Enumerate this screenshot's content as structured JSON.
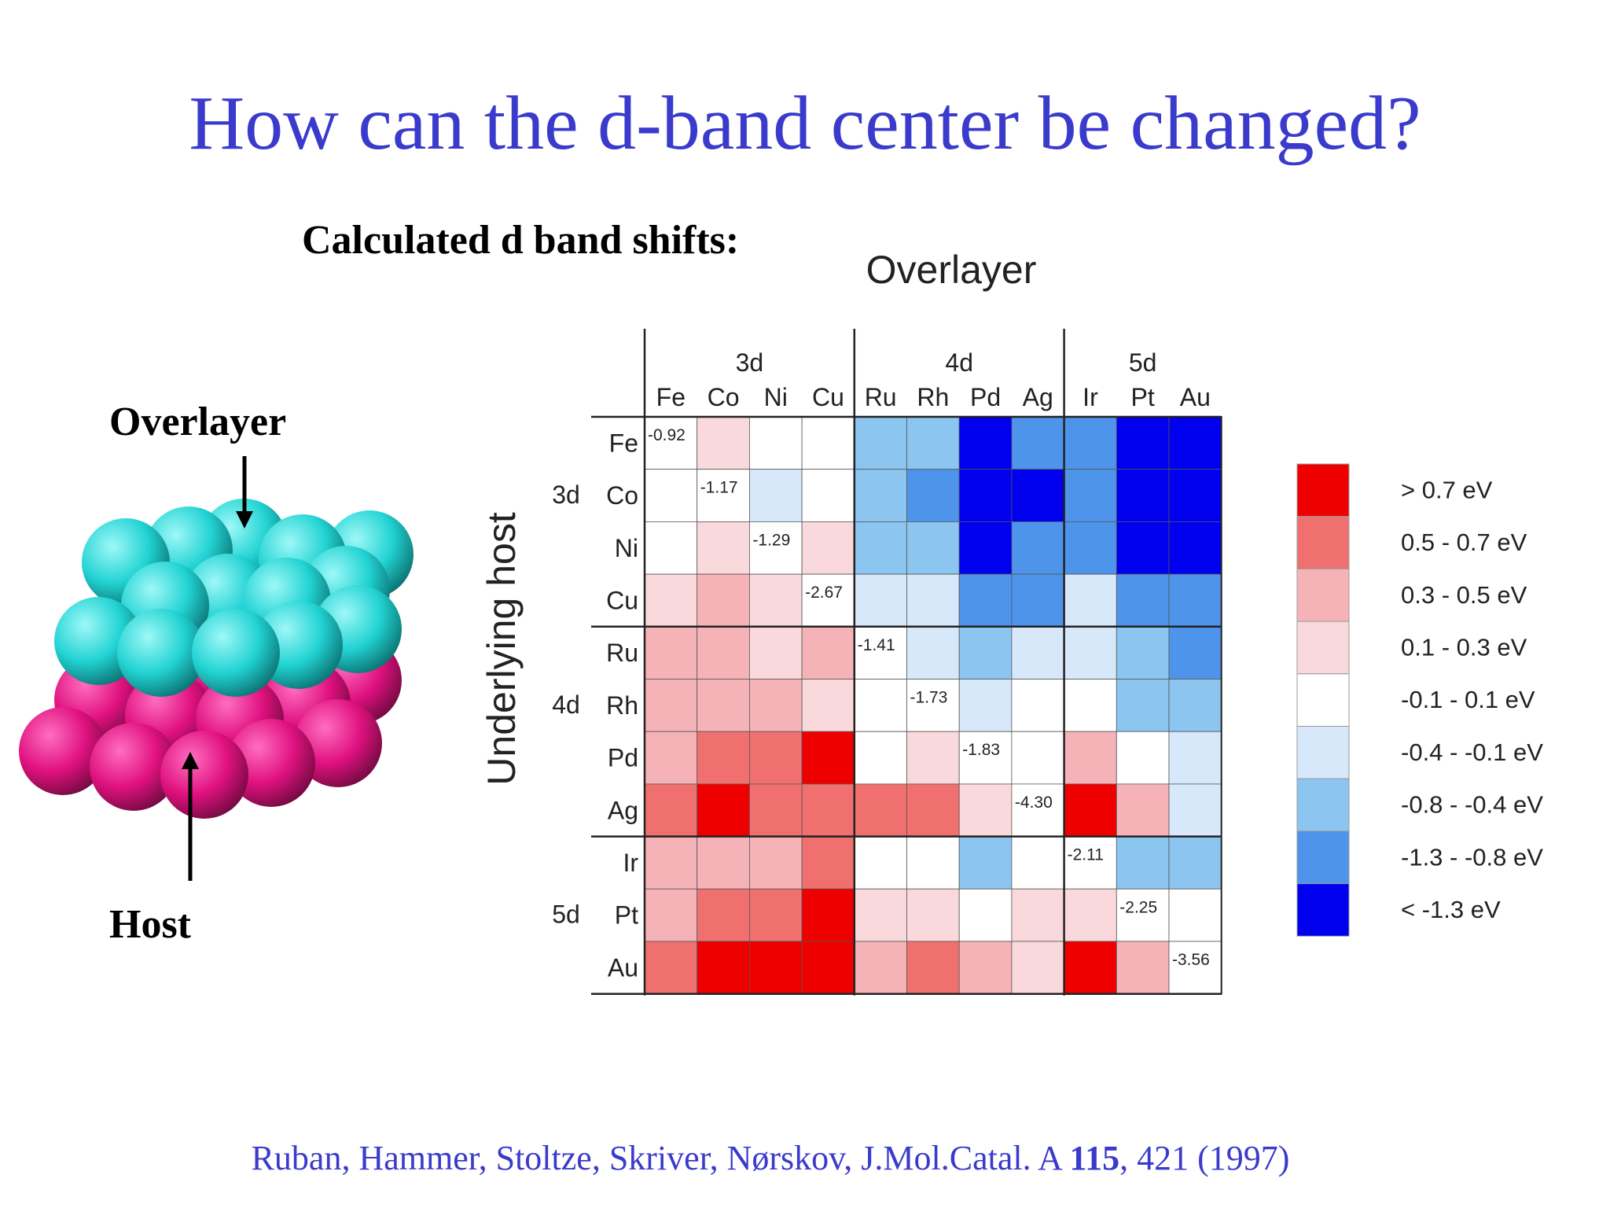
{
  "title": "How can the d-band center be changed?",
  "subtitle": "Calculated d band shifts:",
  "diagram": {
    "overlayer_label": "Overlayer",
    "host_label": "Host",
    "colors": {
      "overlayer": "#22d3d3",
      "host": "#e0117f"
    }
  },
  "citation": {
    "prefix": "Ruban, Hammer, Stoltze, Skriver, Nørskov,  J.Mol.Catal. A ",
    "volume": "115",
    "suffix": ", 421 (1997)"
  },
  "chart_data": {
    "type": "heatmap",
    "title": "Overlayer",
    "xlabel": "Overlayer",
    "ylabel": "Underlying host",
    "groups": [
      "3d",
      "4d",
      "5d"
    ],
    "columns": [
      "Fe",
      "Co",
      "Ni",
      "Cu",
      "Ru",
      "Rh",
      "Pd",
      "Ag",
      "Ir",
      "Pt",
      "Au"
    ],
    "rows": [
      "Fe",
      "Co",
      "Ni",
      "Cu",
      "Ru",
      "Rh",
      "Pd",
      "Ag",
      "Ir",
      "Pt",
      "Au"
    ],
    "column_groups": [
      0,
      0,
      0,
      0,
      1,
      1,
      1,
      1,
      2,
      2,
      2
    ],
    "row_groups": [
      0,
      0,
      0,
      0,
      1,
      1,
      1,
      1,
      2,
      2,
      2
    ],
    "legend": [
      {
        "label": "> 0.7 eV",
        "color": "#ee0000"
      },
      {
        "label": "0.5 - 0.7 eV",
        "color": "#f07070"
      },
      {
        "label": "0.3 - 0.5 eV",
        "color": "#f5b3b8"
      },
      {
        "label": "0.1 - 0.3 eV",
        "color": "#fad9dc"
      },
      {
        "label": "-0.1 - 0.1 eV",
        "color": "#ffffff"
      },
      {
        "label": "-0.4 - -0.1 eV",
        "color": "#d6e8f9"
      },
      {
        "label": "-0.8 - -0.4 eV",
        "color": "#8cc5f0"
      },
      {
        "label": "-1.3 - -0.8 eV",
        "color": "#4d94ea"
      },
      {
        "label": "< -1.3 eV",
        "color": "#0000ee"
      }
    ],
    "bins": [
      [
        -1,
        3,
        4,
        4,
        6,
        6,
        8,
        7,
        7,
        8,
        8
      ],
      [
        4,
        -1,
        5,
        4,
        6,
        7,
        8,
        8,
        7,
        8,
        8
      ],
      [
        4,
        3,
        -1,
        3,
        6,
        6,
        8,
        7,
        7,
        8,
        8
      ],
      [
        3,
        2,
        3,
        -1,
        5,
        5,
        7,
        7,
        5,
        7,
        7
      ],
      [
        2,
        2,
        3,
        2,
        -1,
        5,
        6,
        5,
        5,
        6,
        7
      ],
      [
        2,
        2,
        2,
        3,
        4,
        -1,
        5,
        4,
        4,
        6,
        6
      ],
      [
        2,
        1,
        1,
        0,
        4,
        3,
        -1,
        4,
        2,
        4,
        5
      ],
      [
        1,
        0,
        1,
        1,
        1,
        1,
        3,
        -1,
        0,
        2,
        5
      ],
      [
        2,
        2,
        2,
        1,
        4,
        4,
        6,
        4,
        -1,
        6,
        6
      ],
      [
        2,
        1,
        1,
        0,
        3,
        3,
        4,
        3,
        3,
        -1,
        4
      ],
      [
        1,
        0,
        0,
        0,
        2,
        1,
        2,
        3,
        0,
        2,
        -1
      ]
    ],
    "diagonal_values": [
      "-0.92",
      "-1.17",
      "-1.29",
      "-2.67",
      "-1.41",
      "-1.73",
      "-1.83",
      "-4.30",
      "-2.11",
      "-2.25",
      "-3.56"
    ]
  }
}
